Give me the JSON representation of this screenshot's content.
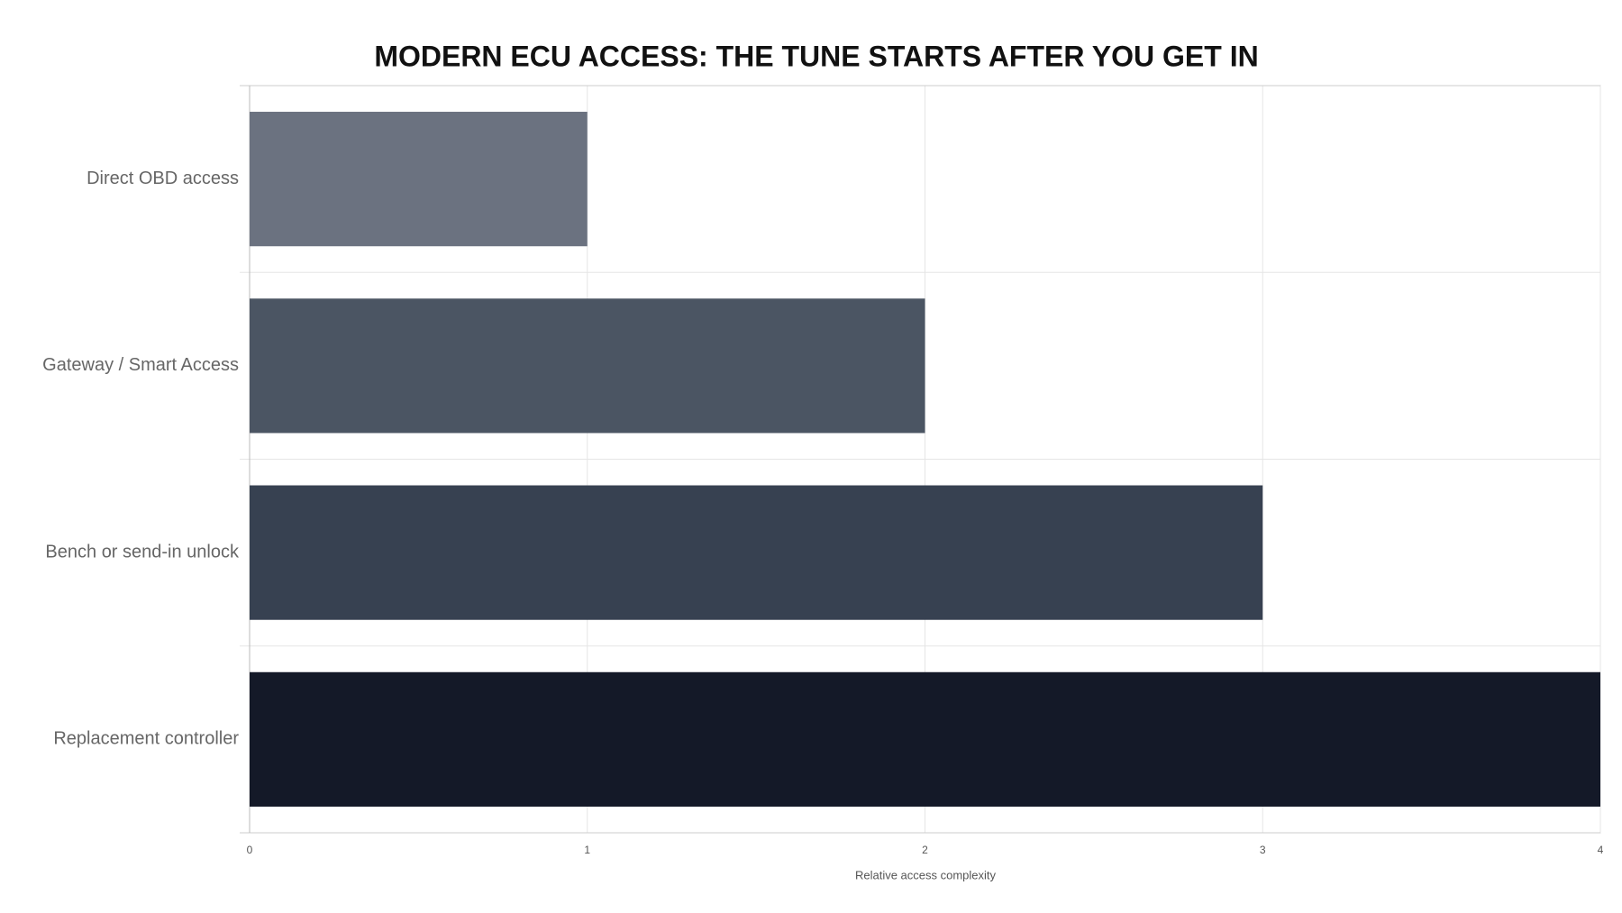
{
  "chart_data": {
    "type": "barh",
    "title": "MODERN ECU ACCESS: THE TUNE STARTS AFTER YOU GET IN",
    "categories": [
      "Direct OBD access",
      "Gateway / Smart Access",
      "Bench or send-in unlock",
      "Replacement controller"
    ],
    "values": [
      1,
      2,
      3,
      4
    ],
    "colors": [
      "#6b7280",
      "#4b5563",
      "#374151",
      "#141928"
    ],
    "xlabel": "Relative access complexity",
    "xlim": [
      0,
      4
    ],
    "xticks": [
      0,
      1,
      2,
      3,
      4
    ],
    "grid": true
  }
}
